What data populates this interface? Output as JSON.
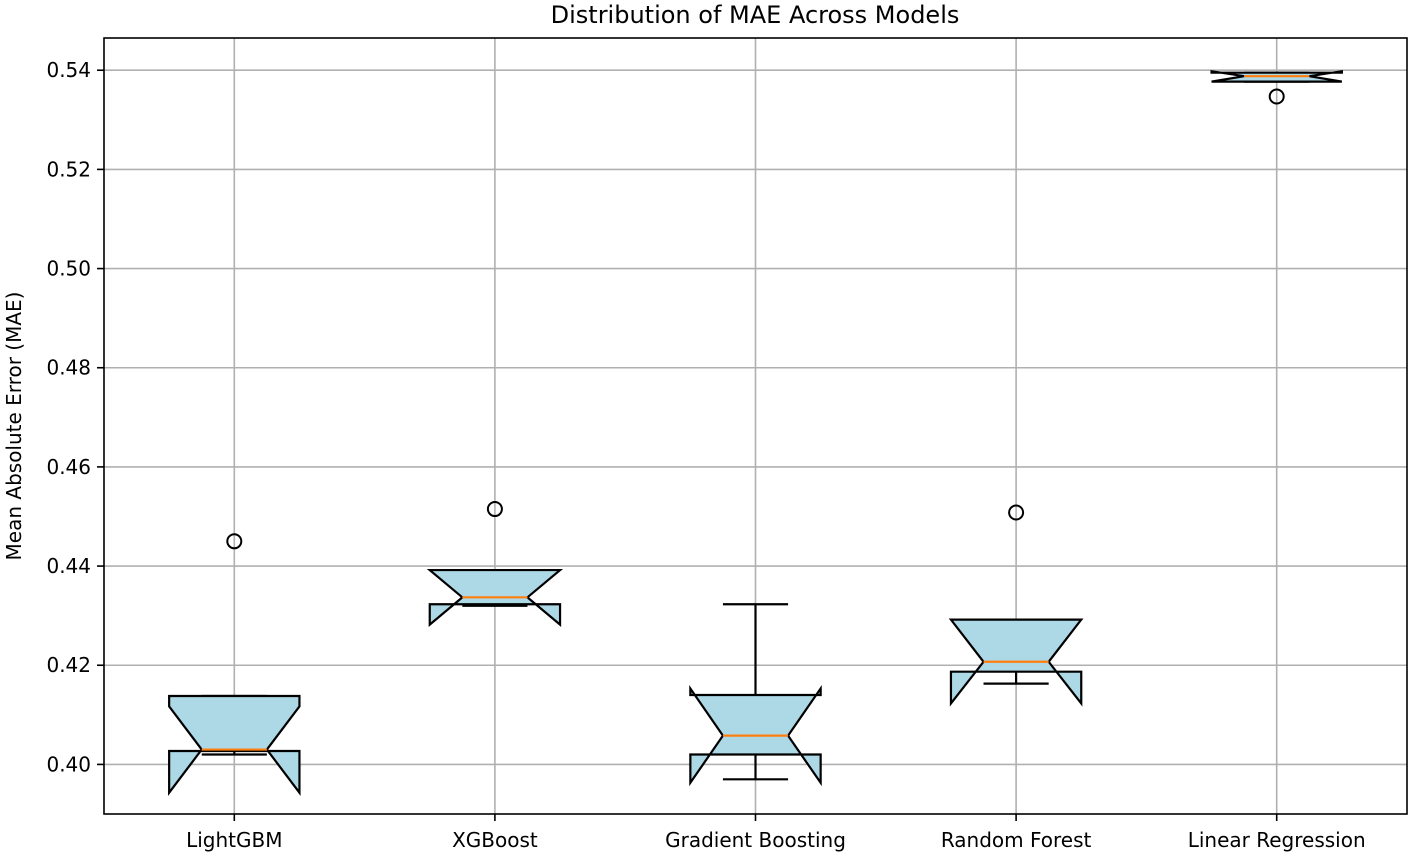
{
  "chart_data": {
    "type": "boxplot",
    "title": "Distribution of MAE Across Models",
    "xlabel": "",
    "ylabel": "Mean Absolute Error (MAE)",
    "ylim": [
      0.39,
      0.5465
    ],
    "yticks": [
      "0.40",
      "0.42",
      "0.44",
      "0.46",
      "0.48",
      "0.50",
      "0.52",
      "0.54"
    ],
    "grid": true,
    "notched": true,
    "colors": {
      "box_fill": "#add8e6",
      "median": "#ff7f0e",
      "edge": "#000000",
      "grid": "#b0b0b0"
    },
    "categories": [
      "LightGBM",
      "XGBoost",
      "Gradient Boosting",
      "Random Forest",
      "Linear Regression"
    ],
    "boxes": [
      {
        "q1": 0.4027,
        "median": 0.403,
        "q3": 0.4138,
        "whisker_low": 0.402,
        "whisker_high": 0.4138,
        "notch_low": 0.3943,
        "notch_high": 0.4117,
        "outliers": [
          0.445
        ]
      },
      {
        "q1": 0.4323,
        "median": 0.4337,
        "q3": 0.4392,
        "whisker_low": 0.432,
        "whisker_high": 0.4392,
        "notch_low": 0.4282,
        "notch_high": 0.4392,
        "outliers": [
          0.4515
        ]
      },
      {
        "q1": 0.402,
        "median": 0.4058,
        "q3": 0.414,
        "whisker_low": 0.397,
        "whisker_high": 0.4323,
        "notch_low": 0.3963,
        "notch_high": 0.4153,
        "outliers": []
      },
      {
        "q1": 0.4187,
        "median": 0.4207,
        "q3": 0.4292,
        "whisker_low": 0.4163,
        "whisker_high": 0.4292,
        "notch_low": 0.4123,
        "notch_high": 0.4292,
        "outliers": [
          0.4508
        ]
      },
      {
        "q1": 0.5377,
        "median": 0.5388,
        "q3": 0.5395,
        "whisker_low": 0.5377,
        "whisker_high": 0.5395,
        "notch_low": 0.5377,
        "notch_high": 0.5398,
        "outliers": [
          0.5347
        ]
      }
    ]
  }
}
